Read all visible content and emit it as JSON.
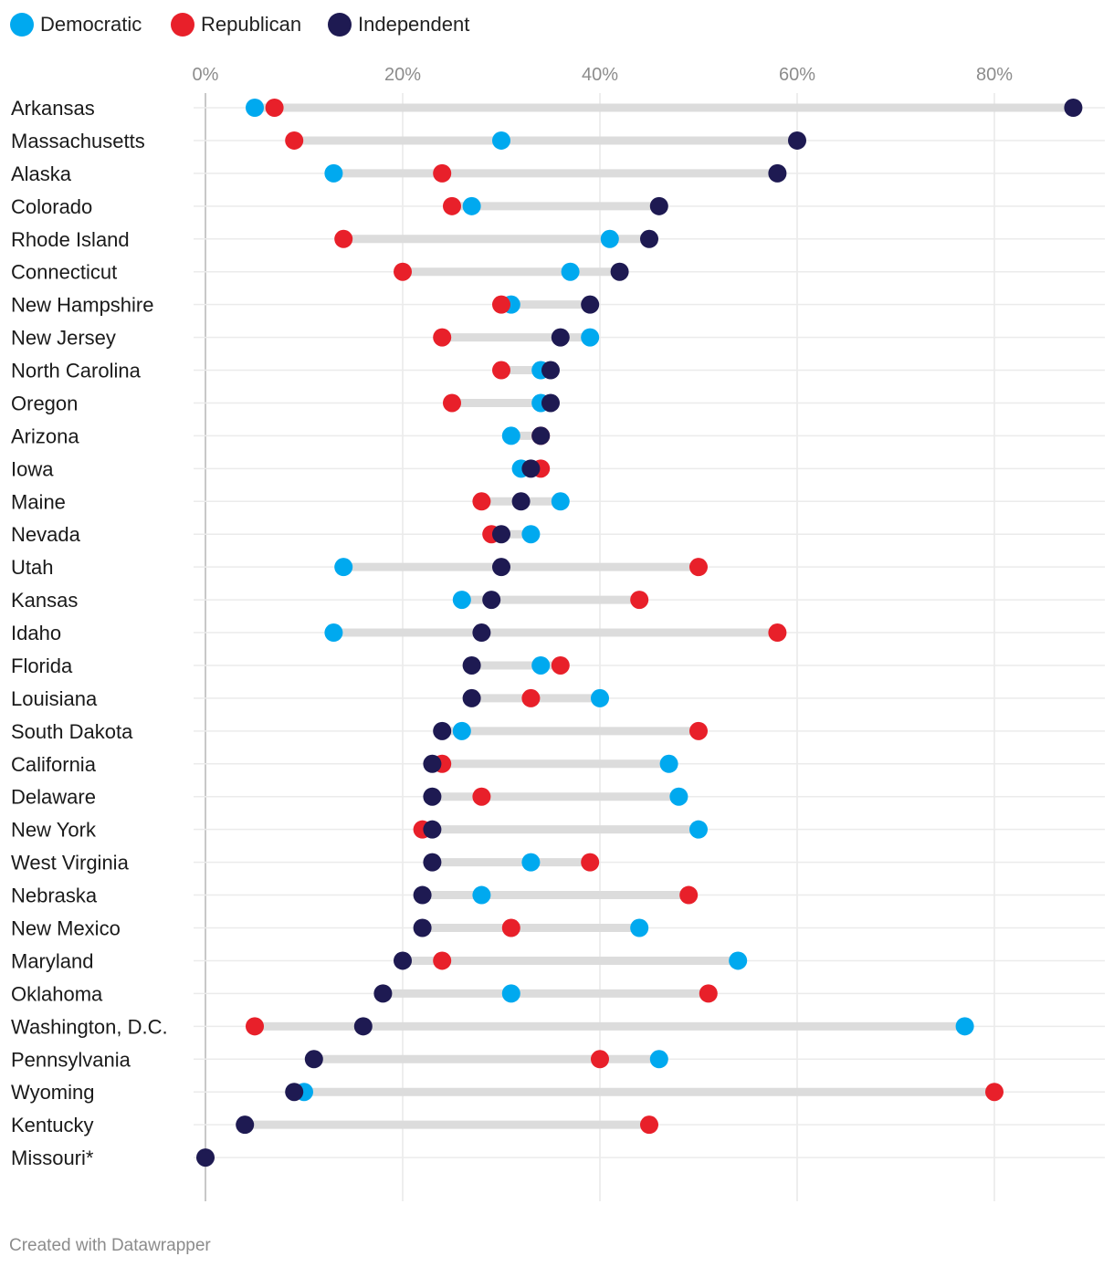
{
  "chart_data": {
    "type": "dot-range",
    "title": "",
    "xlabel": "",
    "ylabel": "",
    "xlim": [
      0,
      90
    ],
    "ticks": [
      {
        "value": 0,
        "label": "0%"
      },
      {
        "value": 20,
        "label": "20%"
      },
      {
        "value": 40,
        "label": "40%"
      },
      {
        "value": 60,
        "label": "60%"
      },
      {
        "value": 80,
        "label": "80%"
      }
    ],
    "grid": true,
    "legend": "top-left",
    "series": [
      {
        "key": "dem",
        "name": "Democratic",
        "color": "#00a9ef"
      },
      {
        "key": "rep",
        "name": "Republican",
        "color": "#e8202a"
      },
      {
        "key": "ind",
        "name": "Independent",
        "color": "#1e1a52"
      }
    ],
    "rows": [
      {
        "state": "Arkansas",
        "dem": 5,
        "rep": 7,
        "ind": 88
      },
      {
        "state": "Massachusetts",
        "dem": 30,
        "rep": 9,
        "ind": 60
      },
      {
        "state": "Alaska",
        "dem": 13,
        "rep": 24,
        "ind": 58
      },
      {
        "state": "Colorado",
        "dem": 27,
        "rep": 25,
        "ind": 46
      },
      {
        "state": "Rhode Island",
        "dem": 41,
        "rep": 14,
        "ind": 45
      },
      {
        "state": "Connecticut",
        "dem": 37,
        "rep": 20,
        "ind": 42
      },
      {
        "state": "New Hampshire",
        "dem": 31,
        "rep": 30,
        "ind": 39
      },
      {
        "state": "New Jersey",
        "dem": 39,
        "rep": 24,
        "ind": 36
      },
      {
        "state": "North Carolina",
        "dem": 34,
        "rep": 30,
        "ind": 35
      },
      {
        "state": "Oregon",
        "dem": 34,
        "rep": 25,
        "ind": 35
      },
      {
        "state": "Arizona",
        "dem": 31,
        "rep": 34,
        "ind": 34
      },
      {
        "state": "Iowa",
        "dem": 32,
        "rep": 34,
        "ind": 33
      },
      {
        "state": "Maine",
        "dem": 36,
        "rep": 28,
        "ind": 32
      },
      {
        "state": "Nevada",
        "dem": 33,
        "rep": 29,
        "ind": 30
      },
      {
        "state": "Utah",
        "dem": 14,
        "rep": 50,
        "ind": 30
      },
      {
        "state": "Kansas",
        "dem": 26,
        "rep": 44,
        "ind": 29
      },
      {
        "state": "Idaho",
        "dem": 13,
        "rep": 58,
        "ind": 28
      },
      {
        "state": "Florida",
        "dem": 34,
        "rep": 36,
        "ind": 27
      },
      {
        "state": "Louisiana",
        "dem": 40,
        "rep": 33,
        "ind": 27
      },
      {
        "state": "South Dakota",
        "dem": 26,
        "rep": 50,
        "ind": 24
      },
      {
        "state": "California",
        "dem": 47,
        "rep": 24,
        "ind": 23
      },
      {
        "state": "Delaware",
        "dem": 48,
        "rep": 28,
        "ind": 23
      },
      {
        "state": "New York",
        "dem": 50,
        "rep": 22,
        "ind": 23
      },
      {
        "state": "West Virginia",
        "dem": 33,
        "rep": 39,
        "ind": 23
      },
      {
        "state": "Nebraska",
        "dem": 28,
        "rep": 49,
        "ind": 22
      },
      {
        "state": "New Mexico",
        "dem": 44,
        "rep": 31,
        "ind": 22
      },
      {
        "state": "Maryland",
        "dem": 54,
        "rep": 24,
        "ind": 20
      },
      {
        "state": "Oklahoma",
        "dem": 31,
        "rep": 51,
        "ind": 18
      },
      {
        "state": "Washington, D.C.",
        "dem": 77,
        "rep": 5,
        "ind": 16
      },
      {
        "state": "Pennsylvania",
        "dem": 46,
        "rep": 40,
        "ind": 11
      },
      {
        "state": "Wyoming",
        "dem": 10,
        "rep": 80,
        "ind": 9
      },
      {
        "state": "Kentucky",
        "dem": null,
        "rep": 45,
        "ind": 4
      },
      {
        "state": "Missouri*",
        "dem": null,
        "rep": null,
        "ind": 0
      }
    ]
  },
  "footer": {
    "credit": "Created with Datawrapper"
  }
}
